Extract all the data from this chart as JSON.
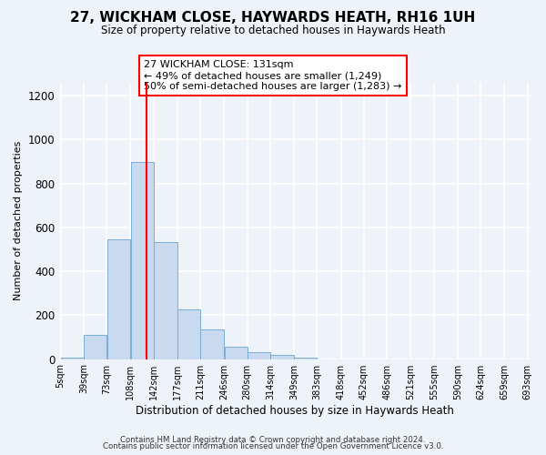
{
  "title": "27, WICKHAM CLOSE, HAYWARDS HEATH, RH16 1UH",
  "subtitle": "Size of property relative to detached houses in Haywards Heath",
  "xlabel": "Distribution of detached houses by size in Haywards Heath",
  "ylabel": "Number of detached properties",
  "bin_edges": [
    5,
    39,
    73,
    108,
    142,
    177,
    211,
    246,
    280,
    314,
    349,
    383,
    418,
    452,
    486,
    521,
    555,
    590,
    624,
    659,
    693
  ],
  "bin_labels": [
    "5sqm",
    "39sqm",
    "73sqm",
    "108sqm",
    "142sqm",
    "177sqm",
    "211sqm",
    "246sqm",
    "280sqm",
    "314sqm",
    "349sqm",
    "383sqm",
    "418sqm",
    "452sqm",
    "486sqm",
    "521sqm",
    "555sqm",
    "590sqm",
    "624sqm",
    "659sqm",
    "693sqm"
  ],
  "counts": [
    5,
    110,
    545,
    900,
    535,
    225,
    135,
    55,
    33,
    17,
    8,
    0,
    0,
    0,
    0,
    0,
    0,
    0,
    0,
    0
  ],
  "bar_color": "#c8d9f0",
  "bar_edge_color": "#7aadd6",
  "vline_x": 131,
  "vline_color": "red",
  "ylim": [
    0,
    1260
  ],
  "yticks": [
    0,
    200,
    400,
    600,
    800,
    1000,
    1200
  ],
  "annotation_title": "27 WICKHAM CLOSE: 131sqm",
  "annotation_line1": "← 49% of detached houses are smaller (1,249)",
  "annotation_line2": "50% of semi-detached houses are larger (1,283) →",
  "annotation_box_color": "red",
  "footer_line1": "Contains HM Land Registry data © Crown copyright and database right 2024.",
  "footer_line2": "Contains public sector information licensed under the Open Government Licence v3.0.",
  "background_color": "#eef2f9",
  "grid_color": "white"
}
